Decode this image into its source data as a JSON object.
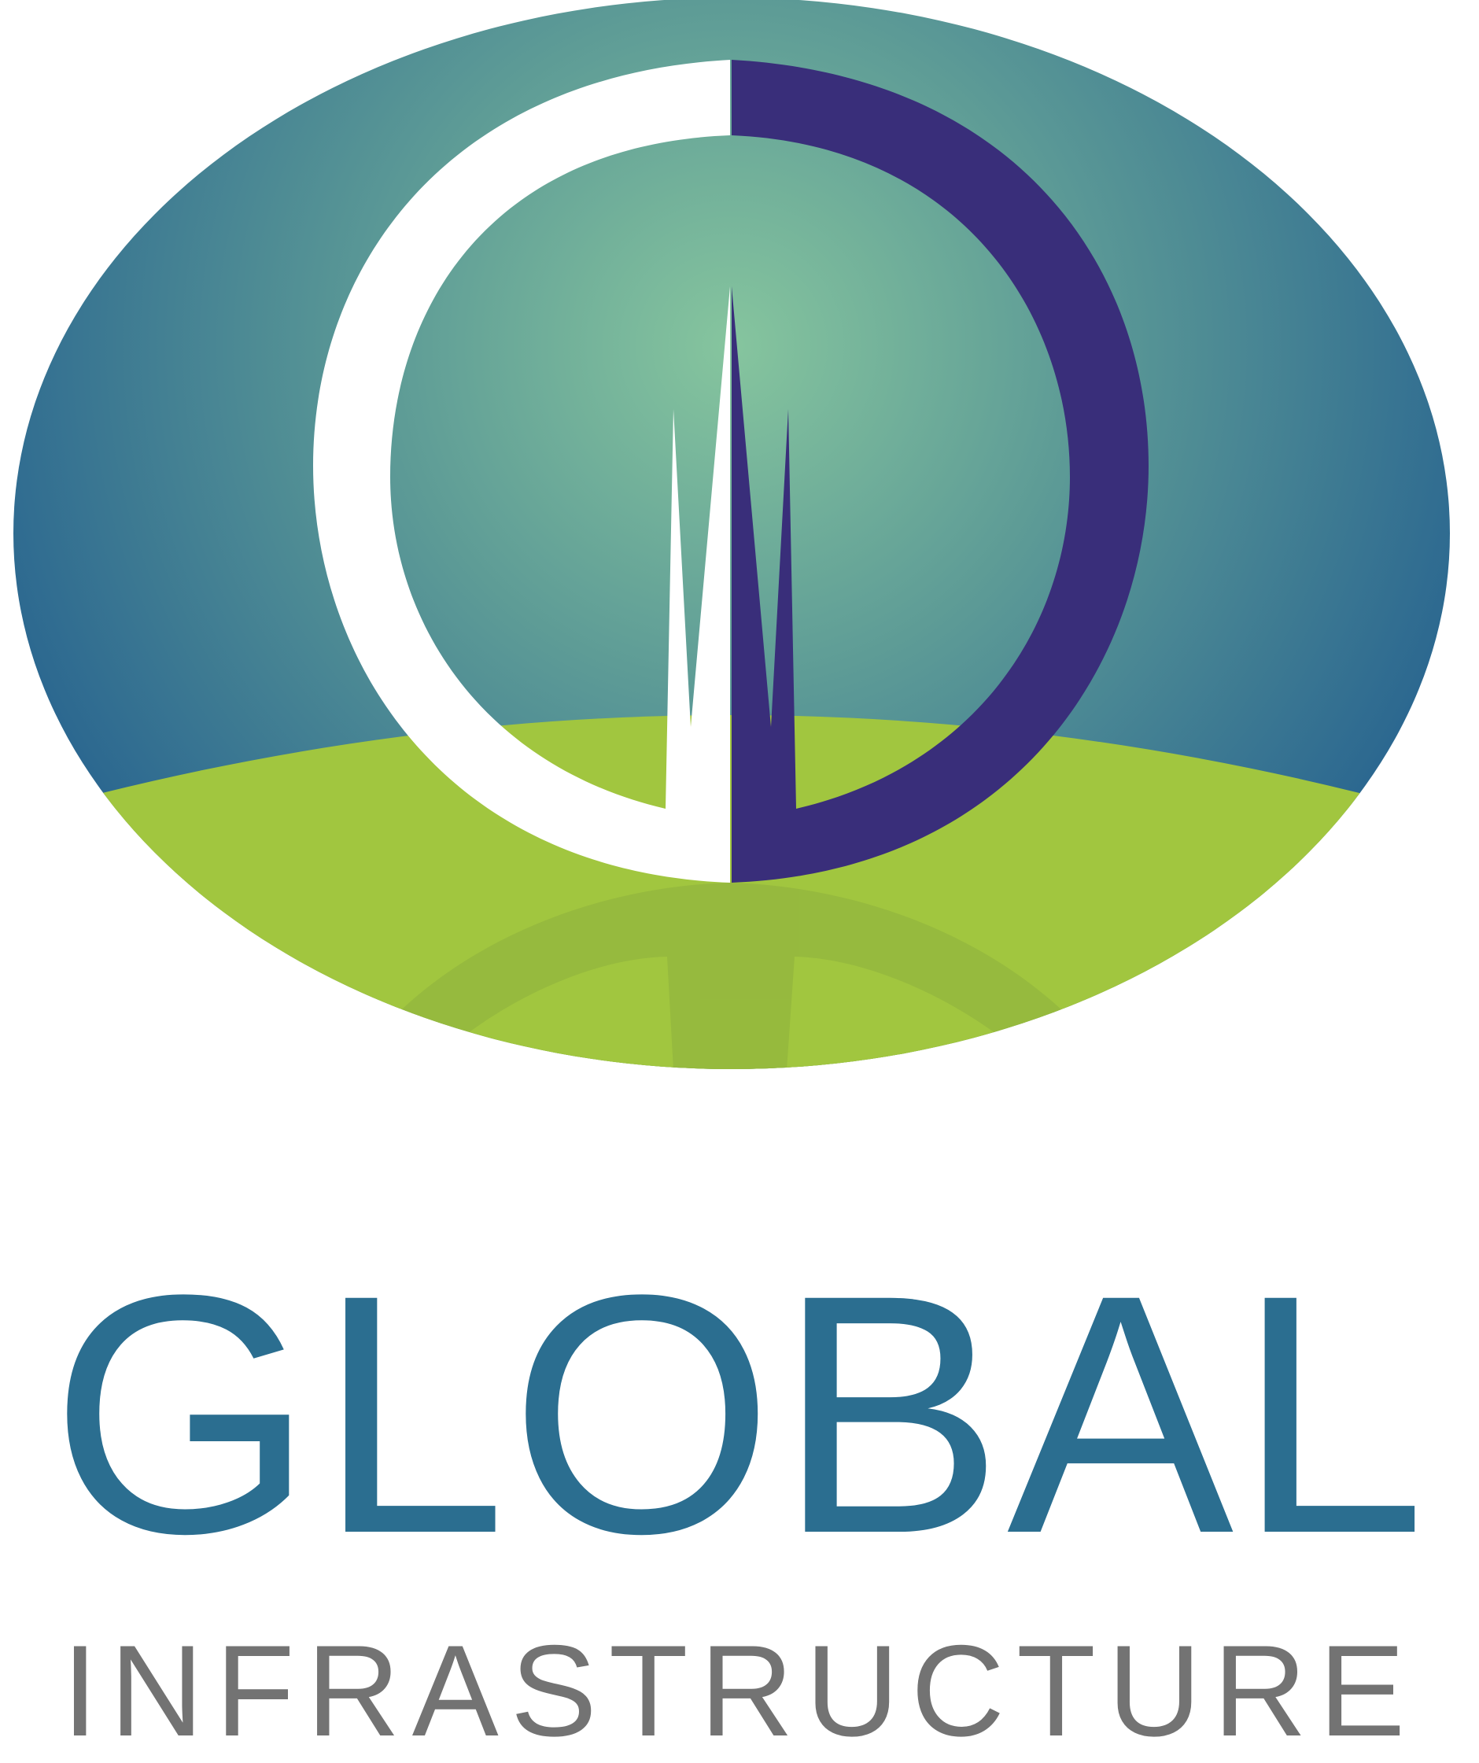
{
  "brand": {
    "name_primary": "GLOBAL",
    "name_secondary": "INFRASTRUCTURE"
  },
  "colors": {
    "primary_text": "#2b6e90",
    "secondary_text": "#737373",
    "sky_center": "#86c59e",
    "sky_mid": "#5c9a96",
    "sky_edge": "#2a6690",
    "ground": "#a1c63f",
    "ground_reflection": "#8aaa3d",
    "letter_white": "#ffffff",
    "letter_purple": "#392e7a"
  },
  "icons": {
    "emblem": "globe-with-cd-monogram-icon"
  }
}
